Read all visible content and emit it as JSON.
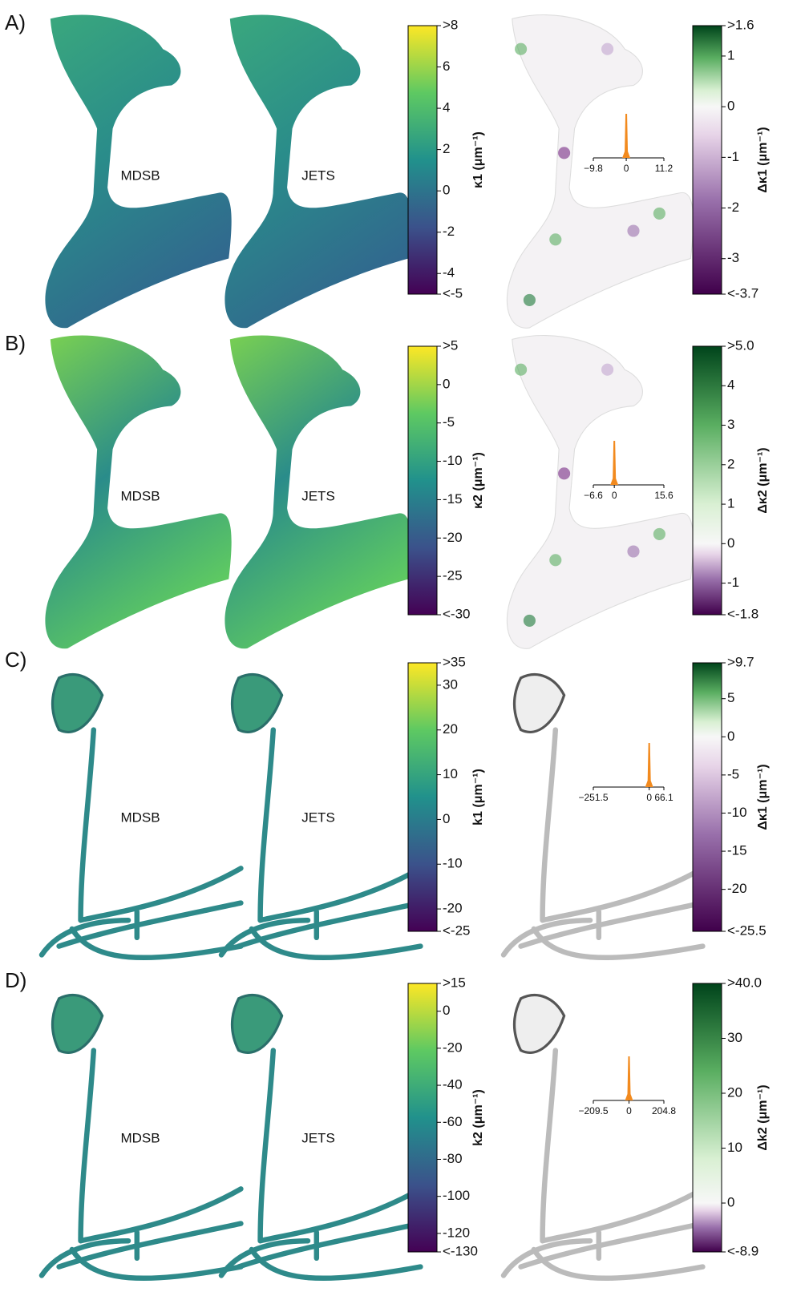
{
  "panels": [
    {
      "label": "A)",
      "methods": [
        "MDSB",
        "JETS"
      ],
      "colorbar": {
        "label": "κ1 (μm⁻¹)",
        "lim": [
          -5,
          8
        ],
        "ticks": [
          {
            "value": 8,
            "label": ">8"
          },
          6,
          4,
          2,
          0,
          -2,
          -4,
          {
            "value": -5,
            "label": "<-5"
          }
        ]
      },
      "diff_colorbar": {
        "label": "Δκ1 (μm⁻¹)",
        "lim": [
          -3.7,
          1.6
        ],
        "ticks": [
          {
            "value": 1.6,
            "label": ">1.6"
          },
          1,
          0,
          -1,
          -2,
          -3,
          {
            "value": -3.7,
            "label": "<-3.7"
          }
        ]
      },
      "histogram": {
        "xlim": [
          -9.8,
          11.2
        ],
        "xticks": [
          {
            "value": -9.8,
            "label": "−9.8"
          },
          0,
          11.2
        ]
      }
    },
    {
      "label": "B)",
      "methods": [
        "MDSB",
        "JETS"
      ],
      "colorbar": {
        "label": "κ2 (μm⁻¹)",
        "lim": [
          -30,
          5
        ],
        "ticks": [
          {
            "value": 5,
            "label": ">5"
          },
          0,
          -5,
          -10,
          -15,
          -20,
          -25,
          {
            "value": -30,
            "label": "<-30"
          }
        ]
      },
      "diff_colorbar": {
        "label": "Δκ2 (μm⁻¹)",
        "lim": [
          -1.8,
          5.0
        ],
        "ticks": [
          {
            "value": 5.0,
            "label": ">5.0"
          },
          4,
          3,
          2,
          1,
          0,
          -1,
          {
            "value": -1.8,
            "label": "<-1.8"
          }
        ]
      },
      "histogram": {
        "xlim": [
          -6.6,
          15.6
        ],
        "xticks": [
          {
            "value": -6.6,
            "label": "−6.6"
          },
          0,
          15.6
        ]
      }
    },
    {
      "label": "C)",
      "methods": [
        "MDSB",
        "JETS"
      ],
      "colorbar": {
        "label": "k1 (μm⁻¹)",
        "lim": [
          -25,
          35
        ],
        "ticks": [
          {
            "value": 35,
            "label": ">35"
          },
          30,
          20,
          10,
          0,
          -10,
          -20,
          {
            "value": -25,
            "label": "<-25"
          }
        ]
      },
      "diff_colorbar": {
        "label": "Δκ1 (μm⁻¹)",
        "lim": [
          -25.5,
          9.7
        ],
        "ticks": [
          {
            "value": 9.7,
            "label": ">9.7"
          },
          5,
          0,
          -5,
          -10,
          -15,
          -20,
          {
            "value": -25.5,
            "label": "<-25.5"
          }
        ]
      },
      "histogram": {
        "xlim": [
          -251.5,
          66.1
        ],
        "xticks": [
          {
            "value": -251.5,
            "label": "−251.5"
          },
          0,
          66.1
        ]
      }
    },
    {
      "label": "D)",
      "methods": [
        "MDSB",
        "JETS"
      ],
      "colorbar": {
        "label": "k2 (μm⁻¹)",
        "lim": [
          -130,
          15
        ],
        "ticks": [
          {
            "value": 15,
            "label": ">15"
          },
          0,
          -20,
          -40,
          -60,
          -80,
          -100,
          -120,
          {
            "value": -130,
            "label": "<-130"
          }
        ]
      },
      "diff_colorbar": {
        "label": "Δk2 (μm⁻¹)",
        "lim": [
          -8.9,
          40.0
        ],
        "ticks": [
          {
            "value": 40.0,
            "label": ">40.0"
          },
          30,
          20,
          10,
          0,
          {
            "value": -8.9,
            "label": "<-8.9"
          }
        ]
      },
      "histogram": {
        "xlim": [
          -209.5,
          204.8
        ],
        "xticks": [
          {
            "value": -209.5,
            "label": "−209.5"
          },
          0,
          204.8
        ]
      }
    }
  ]
}
